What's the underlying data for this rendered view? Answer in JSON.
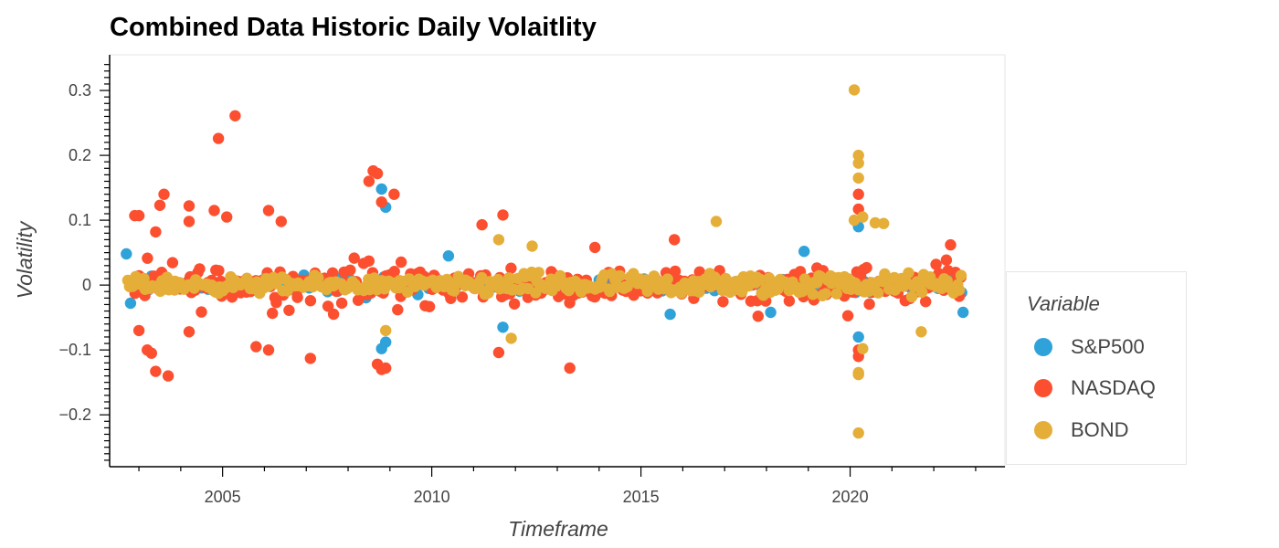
{
  "chart_data": {
    "type": "scatter",
    "title": "Combined Data Historic Daily Volaitlity",
    "xlabel": "Timeframe",
    "ylabel": "Volatility",
    "xlim": [
      2002.3,
      2023.7
    ],
    "ylim": [
      -0.28,
      0.355
    ],
    "x_ticks": [
      2005,
      2010,
      2015,
      2020
    ],
    "x_tick_labels": [
      "2005",
      "2010",
      "2015",
      "2020"
    ],
    "y_ticks": [
      -0.2,
      -0.1,
      0,
      0.1,
      0.2,
      0.3
    ],
    "y_tick_labels": [
      "−0.2",
      "−0.1",
      "0",
      "0.1",
      "0.2",
      "0.3"
    ],
    "grid": false,
    "legend": {
      "title": "Variable",
      "position": "right"
    },
    "series": [
      {
        "name": "S&P500",
        "color": "#30a2da",
        "points": [
          [
            2002.7,
            0.048
          ],
          [
            2002.8,
            -0.028
          ],
          [
            2008.8,
            0.148
          ],
          [
            2008.9,
            0.12
          ],
          [
            2008.8,
            -0.098
          ],
          [
            2008.9,
            -0.088
          ],
          [
            2010.4,
            0.045
          ],
          [
            2011.7,
            -0.065
          ],
          [
            2015.7,
            -0.045
          ],
          [
            2018.1,
            -0.042
          ],
          [
            2018.9,
            0.052
          ],
          [
            2020.2,
            0.09
          ],
          [
            2020.2,
            -0.08
          ],
          [
            2022.7,
            -0.042
          ]
        ],
        "band": {
          "from": 2002.7,
          "to": 2022.7,
          "spread": 0.018,
          "count": 140
        }
      },
      {
        "name": "NASDAQ",
        "color": "#fc4f30",
        "points": [
          [
            2004.9,
            0.226
          ],
          [
            2005.3,
            0.261
          ],
          [
            2002.9,
            0.107
          ],
          [
            2003.0,
            0.107
          ],
          [
            2003.4,
            0.082
          ],
          [
            2003.5,
            0.123
          ],
          [
            2003.6,
            0.14
          ],
          [
            2004.2,
            0.098
          ],
          [
            2004.2,
            0.122
          ],
          [
            2004.8,
            0.115
          ],
          [
            2005.1,
            0.105
          ],
          [
            2006.1,
            0.115
          ],
          [
            2006.4,
            0.098
          ],
          [
            2008.6,
            0.176
          ],
          [
            2008.7,
            0.172
          ],
          [
            2008.5,
            0.16
          ],
          [
            2008.8,
            0.128
          ],
          [
            2009.1,
            0.14
          ],
          [
            2003.0,
            -0.07
          ],
          [
            2003.2,
            -0.1
          ],
          [
            2003.3,
            -0.105
          ],
          [
            2003.4,
            -0.133
          ],
          [
            2003.7,
            -0.14
          ],
          [
            2004.2,
            -0.072
          ],
          [
            2005.8,
            -0.095
          ],
          [
            2006.1,
            -0.1
          ],
          [
            2007.1,
            -0.113
          ],
          [
            2008.7,
            -0.122
          ],
          [
            2008.8,
            -0.13
          ],
          [
            2008.9,
            -0.128
          ],
          [
            2011.2,
            0.093
          ],
          [
            2011.7,
            0.108
          ],
          [
            2011.6,
            -0.104
          ],
          [
            2013.3,
            -0.128
          ],
          [
            2013.9,
            0.058
          ],
          [
            2015.8,
            0.07
          ],
          [
            2017.8,
            -0.048
          ],
          [
            2020.2,
            0.14
          ],
          [
            2020.2,
            0.117
          ],
          [
            2020.2,
            -0.1
          ],
          [
            2020.2,
            -0.11
          ],
          [
            2022.4,
            0.062
          ]
        ],
        "band": {
          "from": 2002.8,
          "to": 2022.7,
          "spread": 0.045,
          "count": 320
        }
      },
      {
        "name": "BOND",
        "color": "#e5ae38",
        "points": [
          [
            2020.1,
            0.301
          ],
          [
            2020.2,
            0.2
          ],
          [
            2020.2,
            0.188
          ],
          [
            2020.2,
            0.165
          ],
          [
            2020.3,
            0.105
          ],
          [
            2020.1,
            0.1
          ],
          [
            2020.6,
            0.096
          ],
          [
            2020.8,
            0.095
          ],
          [
            2016.8,
            0.098
          ],
          [
            2020.2,
            -0.138
          ],
          [
            2020.2,
            -0.135
          ],
          [
            2020.2,
            -0.228
          ],
          [
            2020.3,
            -0.098
          ],
          [
            2011.9,
            -0.082
          ],
          [
            2021.7,
            -0.072
          ],
          [
            2011.6,
            0.07
          ],
          [
            2012.4,
            0.06
          ],
          [
            2008.9,
            -0.07
          ]
        ],
        "band": {
          "from": 2002.7,
          "to": 2022.7,
          "spread": 0.022,
          "count": 380
        }
      }
    ]
  }
}
